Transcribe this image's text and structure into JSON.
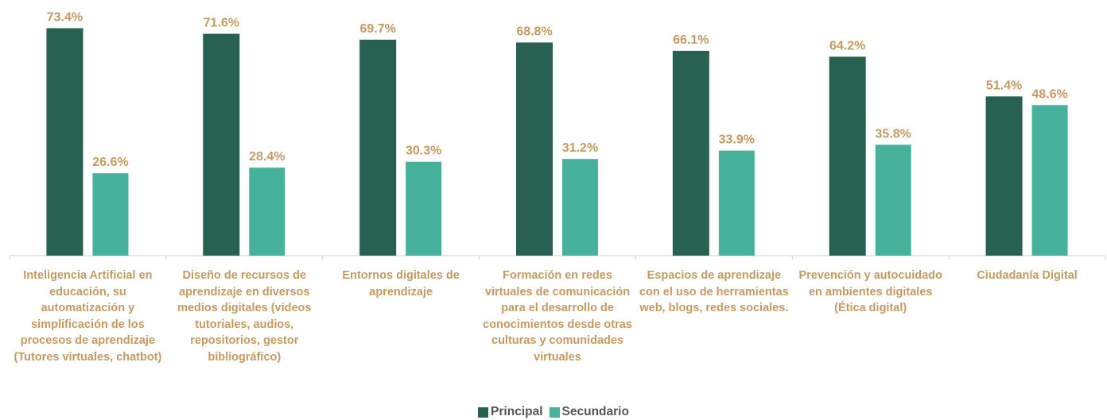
{
  "chart_data": {
    "type": "bar",
    "categories": [
      "Inteligencia Artificial en educación, su automatización y simplificación de los procesos de aprendizaje (Tutores virtuales, chatbot)",
      "Diseño de recursos de aprendizaje en diversos medios digitales (videos tutoriales, audios, repositorios, gestor bibliográfico)",
      "Entornos digitales de aprendizaje",
      "Formación en redes virtuales de comunicación para el desarrollo de conocimientos desde otras culturas y comunidades virtuales",
      "Espacios de aprendizaje con el uso de herramientas web, blogs, redes sociales.",
      "Prevención y autocuidado en ambientes digitales (Ética digital)",
      "Ciudadanía Digital"
    ],
    "series": [
      {
        "name": "Principal",
        "color": "#276152",
        "values": [
          73.4,
          71.6,
          69.7,
          68.8,
          66.1,
          64.2,
          51.4
        ],
        "value_labels": [
          "73.4%",
          "71.6%",
          "69.7%",
          "68.8%",
          "66.1%",
          "64.2%",
          "51.4%"
        ]
      },
      {
        "name": "Secundario",
        "color": "#46b29b",
        "values": [
          26.6,
          28.4,
          30.3,
          31.2,
          33.9,
          35.8,
          48.6
        ],
        "value_labels": [
          "26.6%",
          "28.4%",
          "30.3%",
          "31.2%",
          "33.9%",
          "35.8%",
          "48.6%"
        ]
      }
    ],
    "ylim": [
      0,
      82.5
    ],
    "legend": "bottom"
  }
}
